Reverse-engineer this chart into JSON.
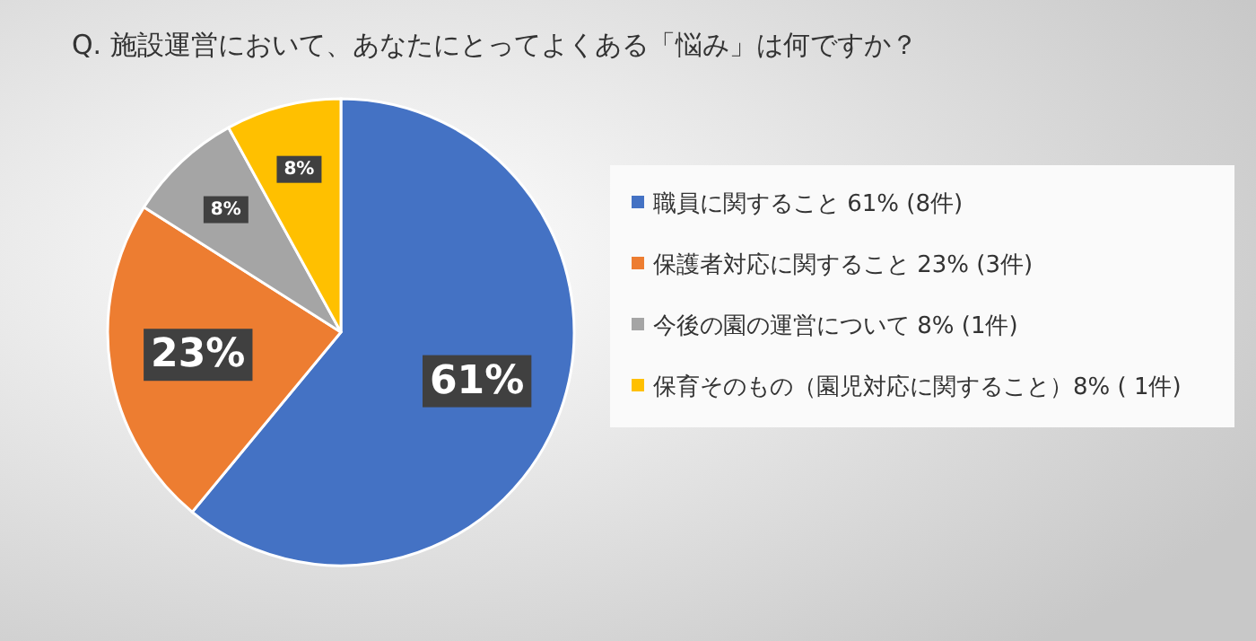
{
  "chart_data": {
    "type": "pie",
    "title": "Q. 施設運営において、あなたにとってよくある「悩み」は何ですか？",
    "categories": [
      "職員に関すること  61% (8件)",
      "保護者対応に関すること  23% (3件)",
      "今後の園の運営について  8% (1件)",
      "保育そのもの（園児対応に関すること）8% ( 1件)"
    ],
    "values": [
      61,
      23,
      8,
      8
    ],
    "colors": [
      "#4472c4",
      "#ed7d31",
      "#a5a5a5",
      "#ffc000"
    ],
    "value_labels": [
      "61%",
      "23%",
      "8%",
      "8%"
    ],
    "legend": "right"
  }
}
